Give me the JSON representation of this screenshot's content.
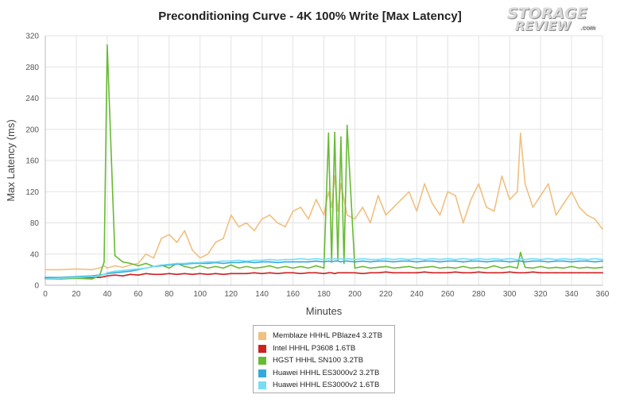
{
  "chart_data": {
    "type": "line",
    "title": "Preconditioning Curve - 4K 100% Write [Max Latency]",
    "xlabel": "Minutes",
    "ylabel": "Max Latency (ms)",
    "xlim": [
      0,
      360
    ],
    "ylim": [
      0,
      320
    ],
    "x_ticks": [
      0,
      20,
      40,
      60,
      80,
      100,
      120,
      140,
      160,
      180,
      200,
      220,
      240,
      260,
      280,
      300,
      320,
      340,
      360
    ],
    "y_ticks": [
      0,
      40,
      80,
      120,
      160,
      200,
      240,
      280,
      320
    ],
    "grid": true,
    "legend_position": "bottom-center",
    "x": [
      0,
      10,
      20,
      30,
      35,
      38,
      40,
      45,
      50,
      55,
      60,
      65,
      70,
      75,
      80,
      85,
      90,
      95,
      100,
      105,
      110,
      115,
      120,
      125,
      130,
      135,
      140,
      145,
      150,
      155,
      160,
      165,
      170,
      175,
      180,
      183,
      185,
      187,
      189,
      191,
      193,
      195,
      200,
      205,
      210,
      215,
      220,
      225,
      230,
      235,
      240,
      245,
      250,
      255,
      260,
      265,
      270,
      275,
      280,
      285,
      290,
      295,
      300,
      305,
      307,
      310,
      315,
      320,
      325,
      330,
      335,
      340,
      345,
      350,
      355,
      360
    ],
    "series": [
      {
        "name": "Memblaze HHHL PBlaze4 3.2TB",
        "color": "#f0c080",
        "values": [
          20,
          20,
          21,
          20,
          22,
          25,
          22,
          25,
          23,
          26,
          28,
          40,
          35,
          60,
          65,
          55,
          70,
          45,
          35,
          40,
          55,
          60,
          90,
          75,
          80,
          70,
          85,
          90,
          80,
          75,
          95,
          100,
          85,
          110,
          90,
          120,
          100,
          140,
          95,
          130,
          110,
          90,
          85,
          100,
          80,
          115,
          90,
          100,
          110,
          120,
          95,
          130,
          105,
          90,
          120,
          115,
          80,
          110,
          130,
          100,
          95,
          140,
          110,
          120,
          195,
          130,
          100,
          115,
          130,
          90,
          105,
          120,
          100,
          90,
          85,
          72
        ]
      },
      {
        "name": "Intel HHHL P3608 1.6TB",
        "color": "#cc2222",
        "values": [
          9,
          9,
          10,
          10,
          10,
          11,
          12,
          13,
          12,
          14,
          13,
          15,
          14,
          14,
          15,
          14,
          15,
          14,
          15,
          14,
          15,
          14,
          15,
          15,
          15,
          16,
          15,
          16,
          15,
          16,
          16,
          15,
          16,
          16,
          15,
          16,
          16,
          15,
          16,
          16,
          16,
          16,
          16,
          15,
          16,
          16,
          17,
          16,
          16,
          16,
          16,
          17,
          16,
          16,
          16,
          17,
          16,
          16,
          17,
          16,
          16,
          16,
          17,
          16,
          16,
          16,
          17,
          16,
          16,
          16,
          16,
          16,
          16,
          16,
          16,
          16
        ]
      },
      {
        "name": "HGST HHHL SN100 3.2TB",
        "color": "#66bb33",
        "values": [
          8,
          8,
          9,
          8,
          12,
          30,
          308,
          38,
          30,
          28,
          25,
          28,
          24,
          26,
          22,
          28,
          24,
          22,
          25,
          22,
          24,
          22,
          26,
          22,
          24,
          22,
          23,
          25,
          22,
          24,
          22,
          24,
          22,
          25,
          22,
          195,
          30,
          196,
          32,
          190,
          28,
          205,
          22,
          24,
          22,
          23,
          24,
          22,
          23,
          24,
          22,
          23,
          24,
          22,
          23,
          22,
          24,
          22,
          23,
          22,
          25,
          22,
          24,
          22,
          42,
          23,
          22,
          24,
          22,
          23,
          22,
          24,
          22,
          23,
          22,
          23
        ]
      },
      {
        "name": "Huawei HHHL ES3000v2 3.2TB",
        "color": "#33aadd",
        "values": [
          10,
          10,
          11,
          12,
          13,
          14,
          15,
          16,
          17,
          18,
          20,
          22,
          24,
          25,
          26,
          27,
          27,
          28,
          28,
          28,
          29,
          28,
          29,
          29,
          30,
          29,
          30,
          30,
          29,
          30,
          30,
          30,
          30,
          31,
          30,
          31,
          30,
          31,
          31,
          30,
          31,
          31,
          30,
          31,
          30,
          31,
          31,
          30,
          31,
          31,
          30,
          31,
          31,
          30,
          31,
          31,
          30,
          31,
          31,
          30,
          31,
          31,
          30,
          31,
          31,
          30,
          31,
          31,
          30,
          31,
          31,
          30,
          31,
          31,
          30,
          31
        ]
      },
      {
        "name": "Huawei HHHL ES3000v2 1.6TB",
        "color": "#77ddf5",
        "values": [
          8,
          9,
          10,
          11,
          12,
          14,
          16,
          18,
          19,
          20,
          21,
          22,
          24,
          26,
          27,
          28,
          28,
          29,
          29,
          30,
          30,
          31,
          31,
          32,
          31,
          32,
          32,
          33,
          32,
          33,
          33,
          34,
          33,
          34,
          33,
          34,
          33,
          34,
          33,
          34,
          33,
          34,
          33,
          34,
          33,
          33,
          34,
          33,
          34,
          33,
          34,
          33,
          34,
          33,
          34,
          33,
          34,
          33,
          34,
          33,
          34,
          33,
          34,
          33,
          34,
          33,
          34,
          33,
          34,
          33,
          34,
          33,
          34,
          33,
          34,
          33
        ]
      }
    ]
  },
  "logo": {
    "line1": "STORAGE",
    "line2": "REVIEW",
    "suffix": ".com"
  }
}
